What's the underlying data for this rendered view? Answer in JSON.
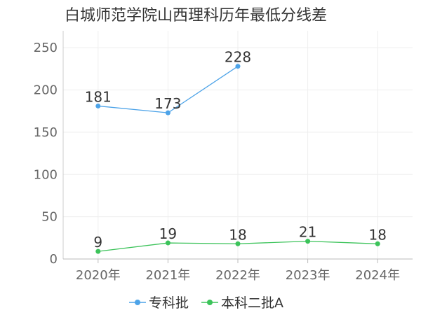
{
  "chart_data": {
    "type": "line",
    "title": "白城师范学院山西理科历年最低分线差",
    "categories": [
      "2020年",
      "2021年",
      "2022年",
      "2023年",
      "2024年"
    ],
    "y_ticks": [
      "0",
      "50",
      "100",
      "150",
      "200",
      "250"
    ],
    "ylim": [
      0,
      270
    ],
    "grid": true,
    "legend_position": "bottom",
    "series": [
      {
        "name": "专科批",
        "color": "#4da3e8",
        "values": [
          181,
          173,
          228,
          null,
          null
        ]
      },
      {
        "name": "本科二批A",
        "color": "#3cc35a",
        "values": [
          9,
          19,
          18,
          21,
          18
        ]
      }
    ]
  }
}
